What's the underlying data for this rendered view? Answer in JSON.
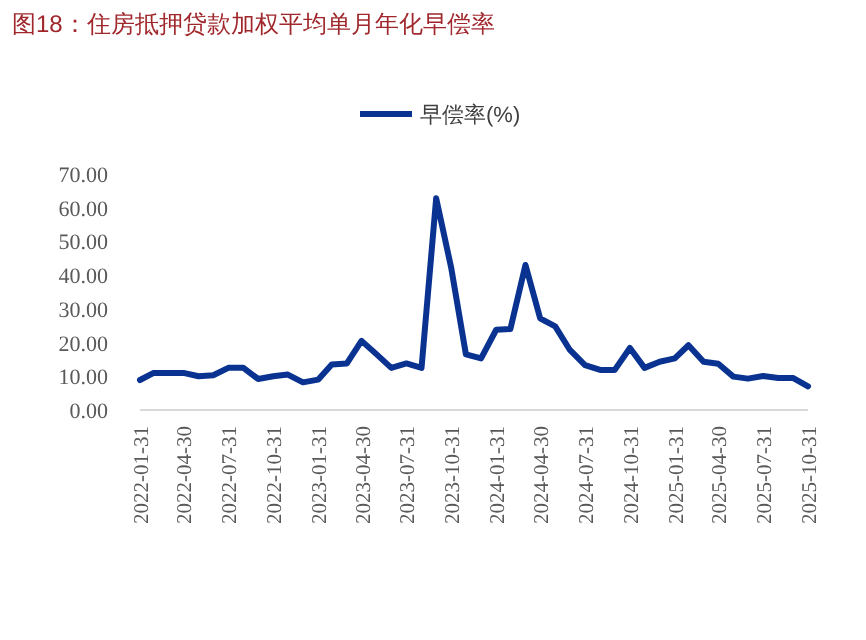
{
  "chart_data": {
    "type": "line",
    "title": "图18：住房抵押贷款加权平均单月年化早偿率",
    "x": [
      "2022-01-31",
      "2022-02-28",
      "2022-03-31",
      "2022-04-30",
      "2022-05-31",
      "2022-06-30",
      "2022-07-31",
      "2022-08-31",
      "2022-09-30",
      "2022-10-31",
      "2022-11-30",
      "2022-12-31",
      "2023-01-31",
      "2023-02-28",
      "2023-03-31",
      "2023-04-30",
      "2023-05-31",
      "2023-06-30",
      "2023-07-31",
      "2023-08-31",
      "2023-09-30",
      "2023-10-31",
      "2023-11-30",
      "2023-12-31",
      "2024-01-31",
      "2024-02-29",
      "2024-03-31",
      "2024-04-30",
      "2024-05-31",
      "2024-06-30",
      "2024-07-31",
      "2024-08-31",
      "2024-09-30",
      "2024-10-31",
      "2024-11-30",
      "2024-12-31",
      "2025-01-31",
      "2025-02-28",
      "2025-03-31",
      "2025-04-30",
      "2025-05-31",
      "2025-06-30",
      "2025-07-31",
      "2025-08-31",
      "2025-09-30",
      "2025-10-31"
    ],
    "series": [
      {
        "name": "早偿率(%)",
        "color": "#0a3391",
        "values": [
          8.9,
          11,
          11,
          11,
          10,
          10.3,
          12.5,
          12.5,
          9.2,
          10,
          10.5,
          8.2,
          9,
          13.5,
          13.8,
          20.5,
          16.5,
          12.5,
          13.8,
          12.5,
          62.8,
          42,
          16.5,
          15.3,
          23.8,
          24,
          43,
          27.2,
          24.8,
          17.8,
          13.3,
          11.9,
          11.9,
          18.4,
          12.5,
          14.3,
          15.3,
          19.2,
          14.3,
          13.7,
          9.9,
          9.3,
          10.1,
          9.5,
          9.5,
          7
        ]
      }
    ],
    "xlim": [
      "2022-01-31",
      "2025-10-31"
    ],
    "xticks": [
      "2022-01-31",
      "2022-04-30",
      "2022-07-31",
      "2022-10-31",
      "2023-01-31",
      "2023-04-30",
      "2023-07-31",
      "2023-10-31",
      "2024-01-31",
      "2024-04-30",
      "2024-07-31",
      "2024-10-31",
      "2025-01-31",
      "2025-04-30",
      "2025-07-31",
      "2025-10-31"
    ],
    "ylim": [
      0,
      70
    ],
    "yticks": [
      {
        "value": 0,
        "label": "0.00"
      },
      {
        "value": 10,
        "label": "10.00"
      },
      {
        "value": 20,
        "label": "20.00"
      },
      {
        "value": 30,
        "label": "30.00"
      },
      {
        "value": 40,
        "label": "40.00"
      },
      {
        "value": 50,
        "label": "50.00"
      },
      {
        "value": 60,
        "label": "60.00"
      },
      {
        "value": 70,
        "label": "70.00"
      }
    ],
    "legend": "top",
    "grid": false,
    "marker": "none",
    "line_style": "solid"
  }
}
